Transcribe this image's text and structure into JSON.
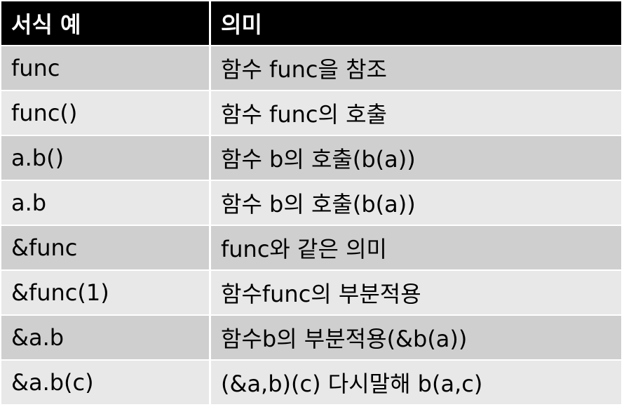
{
  "table": {
    "headers": [
      "서식 예",
      "의미"
    ],
    "rows": [
      [
        "func",
        "함수 func을 참조"
      ],
      [
        "func()",
        "함수 func의 호출"
      ],
      [
        "a.b()",
        "함수 b의 호출(b(a))"
      ],
      [
        "a.b",
        "함수 b의 호출(b(a))"
      ],
      [
        "&func",
        "func와 같은 의미"
      ],
      [
        "&func(1)",
        "함수func의 부분적용"
      ],
      [
        "&a.b",
        "함수b의 부분적용(&b(a))"
      ],
      [
        "&a.b(c)",
        "(&a,b)(c) 다시말해 b(a,c)"
      ]
    ]
  },
  "colors": {
    "header_bg": "#000000",
    "header_text": "#ffffff",
    "row_odd_bg": "#cfcfcf",
    "row_even_bg": "#e8e8e8"
  }
}
